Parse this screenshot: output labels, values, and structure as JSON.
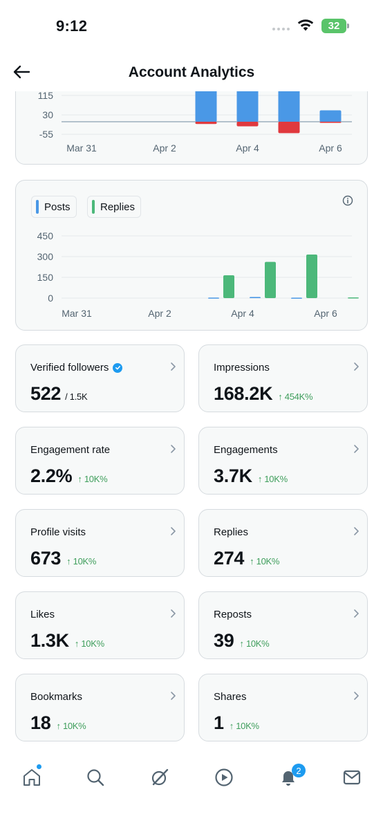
{
  "status_bar": {
    "time": "9:12",
    "battery": "32"
  },
  "header": {
    "title": "Account Analytics"
  },
  "chart_data": [
    {
      "type": "bar",
      "title": "",
      "y_ticks": [
        "115",
        "30",
        "-55"
      ],
      "x_ticks": [
        "Mar 31",
        "Apr 2",
        "Apr 4",
        "Apr 6"
      ],
      "categories": [
        "Mar 31",
        "Apr 1",
        "Apr 2",
        "Apr 3",
        "Apr 4",
        "Apr 5",
        "Apr 6"
      ],
      "series": [
        {
          "color": "#4a98e6",
          "values": [
            0,
            0,
            0,
            180,
            200,
            210,
            50
          ]
        },
        {
          "color": "#e0393e",
          "values": [
            0,
            0,
            0,
            -10,
            -20,
            -50,
            -5
          ]
        }
      ],
      "note": "chart partially scrolled out of view at top"
    },
    {
      "type": "bar",
      "categories": [
        "Mar 31",
        "Apr 1",
        "Apr 2",
        "Apr 3",
        "Apr 4",
        "Apr 5",
        "Apr 6"
      ],
      "x_ticks": [
        "Mar 31",
        "Apr 2",
        "Apr 4",
        "Apr 6"
      ],
      "y_ticks": [
        "450",
        "300",
        "150",
        "0"
      ],
      "ylim": [
        0,
        450
      ],
      "series": [
        {
          "name": "Posts",
          "color": "#4a98e6",
          "values": [
            0,
            0,
            0,
            4,
            8,
            3,
            0
          ]
        },
        {
          "name": "Replies",
          "color": "#4cb87a",
          "values": [
            0,
            0,
            0,
            165,
            262,
            315,
            5
          ]
        }
      ],
      "legend": "top-left"
    }
  ],
  "metrics": [
    {
      "label": "Verified followers",
      "value": "522",
      "sub": "/ 1.5K",
      "change": ""
    },
    {
      "label": "Impressions",
      "value": "168.2K",
      "sub": "",
      "change": "↑ 454K%"
    },
    {
      "label": "Engagement rate",
      "value": "2.2%",
      "sub": "",
      "change": "↑ 10K%"
    },
    {
      "label": "Engagements",
      "value": "3.7K",
      "sub": "",
      "change": "↑ 10K%"
    },
    {
      "label": "Profile visits",
      "value": "673",
      "sub": "",
      "change": "↑ 10K%"
    },
    {
      "label": "Replies",
      "value": "274",
      "sub": "",
      "change": "↑ 10K%"
    },
    {
      "label": "Likes",
      "value": "1.3K",
      "sub": "",
      "change": "↑ 10K%"
    },
    {
      "label": "Reposts",
      "value": "39",
      "sub": "",
      "change": "↑ 10K%"
    },
    {
      "label": "Bookmarks",
      "value": "18",
      "sub": "",
      "change": "↑ 10K%"
    },
    {
      "label": "Shares",
      "value": "1",
      "sub": "",
      "change": "↑ 10K%"
    }
  ],
  "tab_bar": {
    "items": [
      "home-icon",
      "search-icon",
      "grok-icon",
      "video-icon",
      "notifications-icon",
      "messages-icon"
    ],
    "notification_count": "2"
  },
  "colors": {
    "accent": "#1d9bf0",
    "positive": "#3f9e5c",
    "posts": "#4a98e6",
    "replies": "#4cb87a",
    "negative": "#e0393e"
  }
}
